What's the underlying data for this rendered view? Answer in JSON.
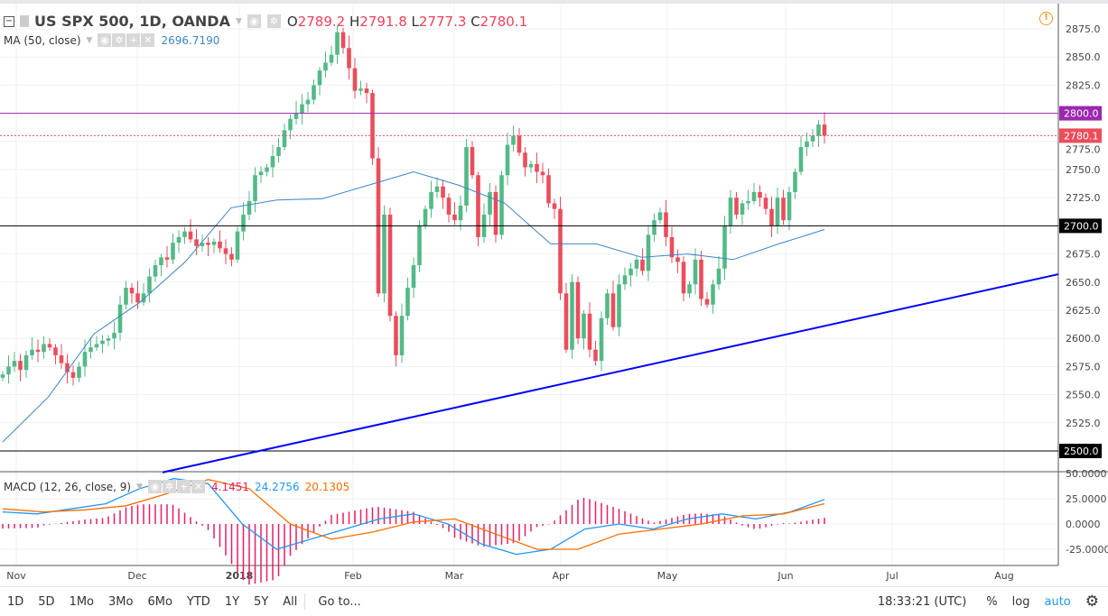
{
  "header": {
    "symbol": "US SPX 500, 1D, OANDA",
    "o_label": "O",
    "o": "2789.2",
    "h_label": "H",
    "h": "2791.8",
    "l_label": "L",
    "l": "2777.3",
    "c_label": "C",
    "c": "2780.1"
  },
  "ma": {
    "label": "MA (50, close)",
    "value": "2696.7190"
  },
  "macd": {
    "label": "MACD (12, 26, close, 9)",
    "hist": "4.1451",
    "macd": "24.2756",
    "signal": "20.1305"
  },
  "colors": {
    "up": "#53b987",
    "down": "#eb4d5c",
    "ma": "#3d85c6",
    "macd": "#2196f3",
    "signal": "#ff6d00",
    "hist": "#e91e63",
    "purple": "#9c27b0",
    "trend": "#0000ff"
  },
  "chart_data": {
    "type": "candlestick",
    "price_ticks": [
      "2875.0",
      "2850.0",
      "2825.0",
      "2800.0",
      "2775.0",
      "2750.0",
      "2725.0",
      "2700.0",
      "2675.0",
      "2650.0",
      "2625.0",
      "2600.0",
      "2575.0",
      "2550.0",
      "2525.0",
      "2500.0"
    ],
    "macd_ticks": [
      "50.0000",
      "25.0000",
      "0.0000",
      "-25.0000"
    ],
    "date_labels": [
      "Nov",
      "Dec",
      "2018",
      "Feb",
      "Mar",
      "Apr",
      "May",
      "Jun",
      "Jul",
      "Aug"
    ],
    "closes": [
      2568,
      2575,
      2580,
      2572,
      2585,
      2590,
      2588,
      2595,
      2592,
      2585,
      2578,
      2570,
      2565,
      2575,
      2588,
      2592,
      2595,
      2598,
      2600,
      2605,
      2630,
      2645,
      2640,
      2632,
      2640,
      2655,
      2665,
      2672,
      2670,
      2685,
      2690,
      2695,
      2688,
      2682,
      2685,
      2683,
      2686,
      2680,
      2675,
      2670,
      2695,
      2710,
      2722,
      2745,
      2748,
      2752,
      2762,
      2770,
      2785,
      2795,
      2800,
      2808,
      2812,
      2825,
      2838,
      2845,
      2852,
      2872,
      2858,
      2840,
      2820,
      2822,
      2818,
      2760,
      2640,
      2710,
      2620,
      2585,
      2620,
      2645,
      2665,
      2700,
      2715,
      2730,
      2735,
      2725,
      2710,
      2705,
      2718,
      2770,
      2745,
      2690,
      2710,
      2730,
      2692,
      2745,
      2772,
      2780,
      2765,
      2752,
      2755,
      2748,
      2745,
      2720,
      2715,
      2640,
      2590,
      2650,
      2600,
      2622,
      2590,
      2580,
      2618,
      2640,
      2610,
      2648,
      2656,
      2662,
      2670,
      2660,
      2692,
      2705,
      2712,
      2690,
      2672,
      2668,
      2640,
      2648,
      2670,
      2635,
      2630,
      2648,
      2662,
      2700,
      2725,
      2710,
      2720,
      2722,
      2730,
      2725,
      2715,
      2700,
      2725,
      2705,
      2730,
      2748,
      2770,
      2775,
      2780,
      2790,
      2780.1
    ],
    "ma50_samples": [
      2508,
      2548,
      2604,
      2632,
      2668,
      2716,
      2723,
      2724,
      2736,
      2748,
      2736,
      2720,
      2684,
      2684,
      2672,
      2675,
      2670,
      2684,
      2696.719
    ],
    "macd_samples": [
      12,
      10,
      15,
      20,
      35,
      45,
      40,
      0,
      -25,
      -15,
      -5,
      5,
      10,
      0,
      -20,
      -30,
      -25,
      -5,
      0,
      -5,
      5,
      10,
      5,
      12,
      24.2756
    ],
    "signal_samples": [
      15,
      12,
      14,
      18,
      30,
      44,
      35,
      0,
      -15,
      -8,
      2,
      5,
      -10,
      -25,
      -25,
      -10,
      -5,
      0,
      8,
      10,
      20.1305
    ],
    "levels": {
      "resistance": 2800.0,
      "last": 2780.1,
      "support": 2700.0,
      "floor": 2500.0
    },
    "trendline": {
      "from_price": 2481,
      "to_price": 2657
    }
  },
  "bottom": {
    "ranges": [
      "1D",
      "5D",
      "1Mo",
      "3Mo",
      "6Mo",
      "YTD",
      "1Y",
      "5Y",
      "All"
    ],
    "goto": "Go to...",
    "time": "18:33:21 (UTC)",
    "percent": "%",
    "log": "log",
    "auto": "auto"
  }
}
